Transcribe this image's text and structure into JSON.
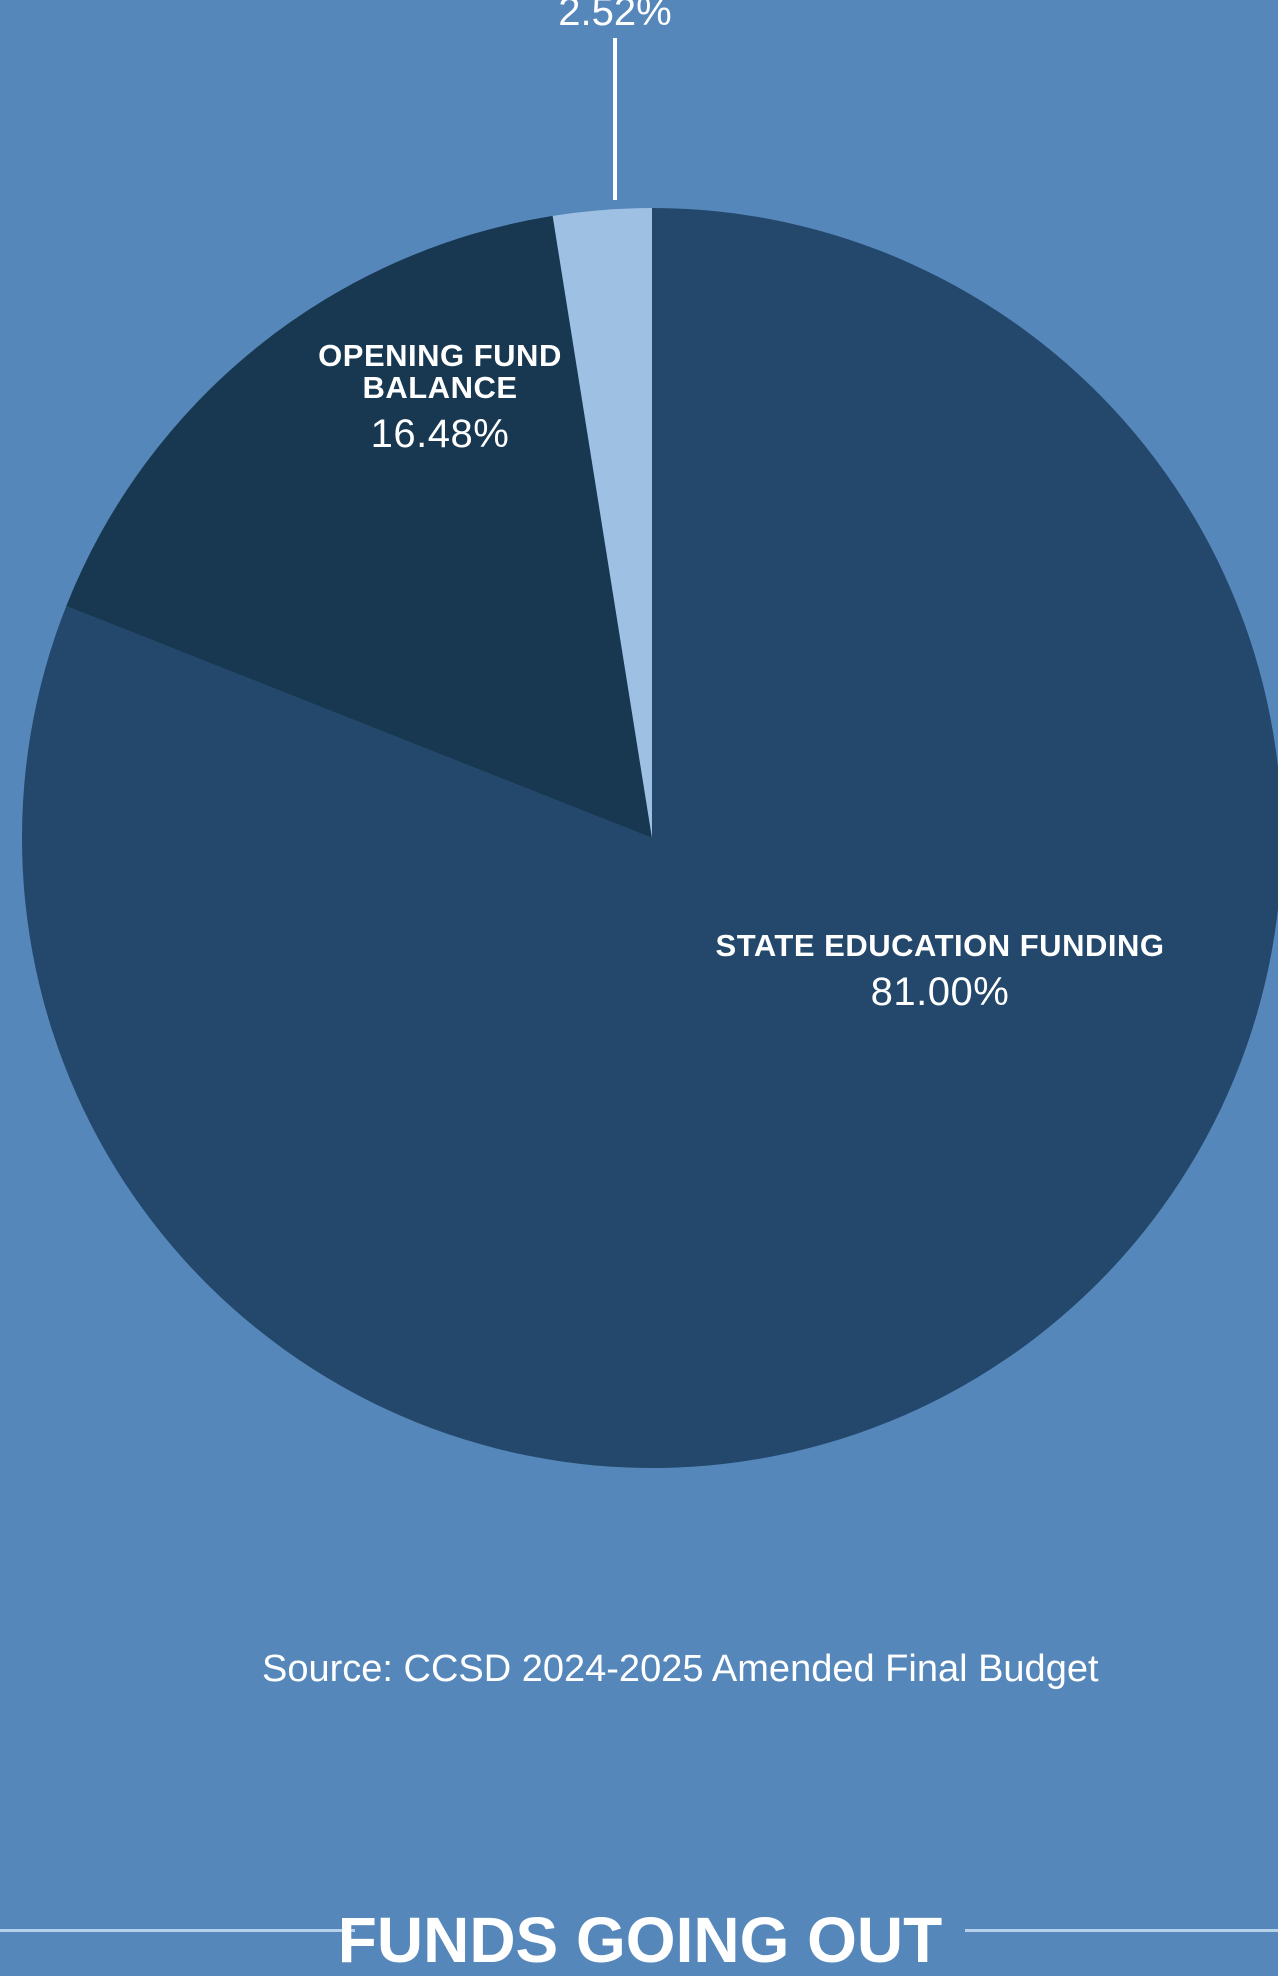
{
  "chart_data": {
    "type": "pie",
    "slices": [
      {
        "label": "STATE EDUCATION FUNDING",
        "value": 81.0,
        "display": "81.00%",
        "color": "#23486b"
      },
      {
        "label": "OPENING FUND\nBALANCE",
        "value": 16.48,
        "display": "16.48%",
        "color": "#173850"
      },
      {
        "label": "",
        "value": 2.52,
        "display": "2.52%",
        "color": "#9ec0e2"
      }
    ],
    "start": "top, clockwise"
  },
  "source": "Source: CCSD 2024-2025 Amended Final Budget",
  "next_section": {
    "heading": "FUNDS GOING OUT"
  },
  "colors": {
    "background": "#5687bb",
    "leader_line": "#ffffff",
    "rule": "#b8d1ea"
  }
}
